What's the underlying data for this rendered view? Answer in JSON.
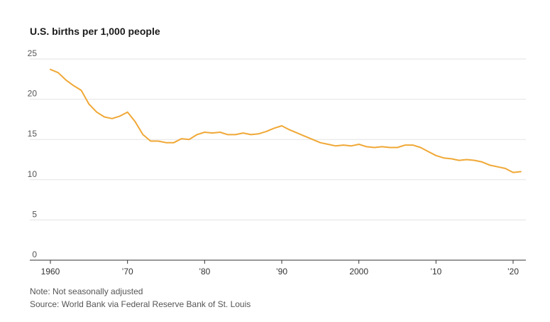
{
  "chart_data": {
    "type": "line",
    "title": "U.S. births per 1,000 people",
    "xlabel": "",
    "ylabel": "",
    "ylim": [
      0,
      25
    ],
    "xlim": [
      1959,
      2021.7
    ],
    "y_ticks": [
      0,
      5,
      10,
      15,
      20,
      25
    ],
    "y_tick_labels": [
      "0",
      "5",
      "10",
      "15",
      "20",
      "25"
    ],
    "x_ticks": [
      1960,
      1970,
      1980,
      1990,
      2000,
      2010,
      2020
    ],
    "x_tick_labels": [
      "1960",
      "’70",
      "’80",
      "’90",
      "2000",
      "’10",
      "’20"
    ],
    "grid": "horizontal",
    "series": [
      {
        "color": "#f0a836",
        "x": [
          1960,
          1961,
          1962,
          1963,
          1964,
          1965,
          1966,
          1967,
          1968,
          1969,
          1970,
          1971,
          1972,
          1973,
          1974,
          1975,
          1976,
          1977,
          1978,
          1979,
          1980,
          1981,
          1982,
          1983,
          1984,
          1985,
          1986,
          1987,
          1988,
          1989,
          1990,
          1991,
          1992,
          1993,
          1994,
          1995,
          1996,
          1997,
          1998,
          1999,
          2000,
          2001,
          2002,
          2003,
          2004,
          2005,
          2006,
          2007,
          2008,
          2009,
          2010,
          2011,
          2012,
          2013,
          2014,
          2015,
          2016,
          2017,
          2018,
          2019,
          2020,
          2021
        ],
        "y": [
          23.7,
          23.3,
          22.4,
          21.7,
          21.1,
          19.4,
          18.4,
          17.8,
          17.6,
          17.9,
          18.4,
          17.2,
          15.6,
          14.8,
          14.8,
          14.6,
          14.6,
          15.1,
          15.0,
          15.6,
          15.9,
          15.8,
          15.9,
          15.6,
          15.6,
          15.8,
          15.6,
          15.7,
          16.0,
          16.4,
          16.7,
          16.2,
          15.8,
          15.4,
          15.0,
          14.6,
          14.4,
          14.2,
          14.3,
          14.2,
          14.4,
          14.1,
          14.0,
          14.1,
          14.0,
          14.0,
          14.3,
          14.3,
          14.0,
          13.5,
          13.0,
          12.7,
          12.6,
          12.4,
          12.5,
          12.4,
          12.2,
          11.8,
          11.6,
          11.4,
          10.9,
          11.0
        ]
      }
    ]
  },
  "notes": {
    "note": "Note: Not seasonally adjusted",
    "source": "Source: World Bank via Federal Reserve Bank of St. Louis"
  }
}
